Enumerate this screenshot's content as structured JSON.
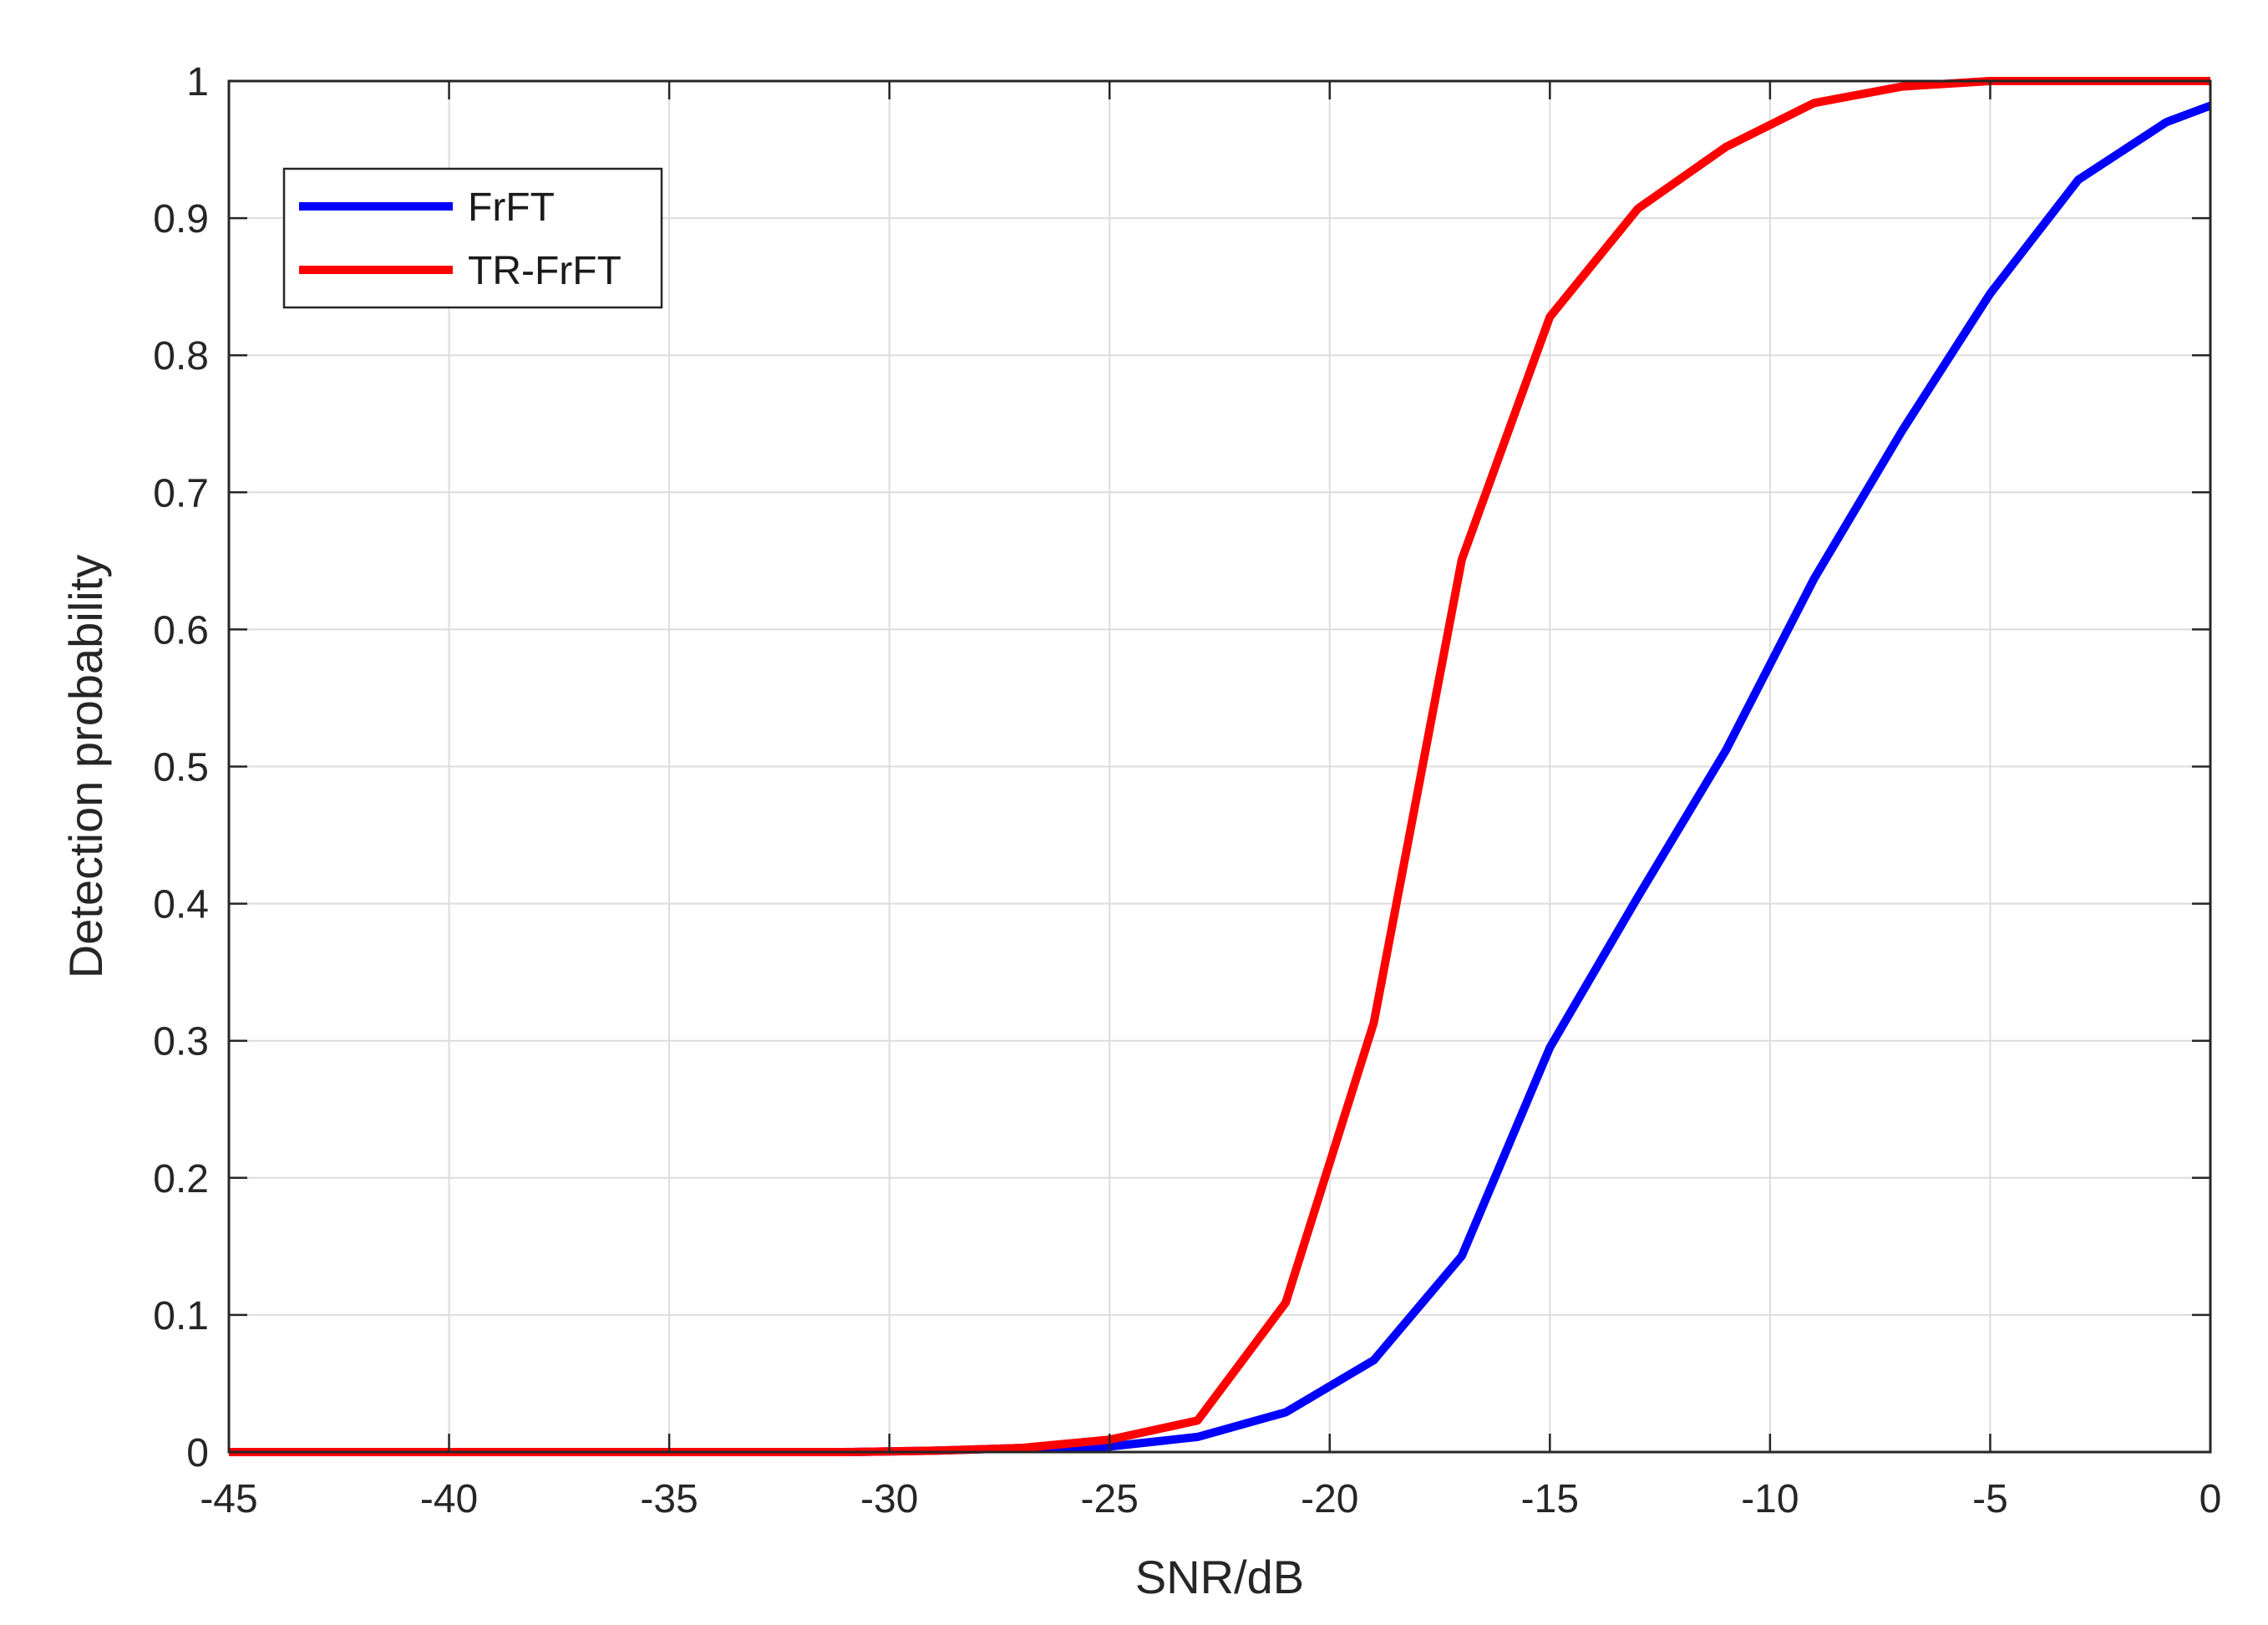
{
  "chart_data": {
    "type": "line",
    "title": "",
    "xlabel": "SNR/dB",
    "ylabel": "Detection probability",
    "xlim": [
      -45,
      0
    ],
    "ylim": [
      0,
      1
    ],
    "xticks": [
      "-45",
      "-40",
      "-35",
      "-30",
      "-25",
      "-20",
      "-15",
      "-10",
      "-5",
      "0"
    ],
    "yticks": [
      "0",
      "0.1",
      "0.2",
      "0.3",
      "0.4",
      "0.5",
      "0.6",
      "0.7",
      "0.8",
      "0.9",
      "1"
    ],
    "grid": true,
    "legend": "top-left",
    "x": [
      -45,
      -43,
      -41,
      -39,
      -37,
      -35,
      -33,
      -31,
      -29,
      -27,
      -25,
      -23,
      -21,
      -19,
      -17,
      -15,
      -13,
      -11,
      -9,
      -7,
      -5,
      -3,
      -1,
      0
    ],
    "series": [
      {
        "name": "FrFT",
        "color": "#0000ff",
        "values": [
          0,
          0,
          0,
          0,
          0,
          0,
          0,
          0,
          0.001,
          0.003,
          0.004,
          0.011,
          0.029,
          0.067,
          0.143,
          0.295,
          0.405,
          0.512,
          0.637,
          0.745,
          0.845,
          0.928,
          0.97,
          0.982
        ]
      },
      {
        "name": "TR-FrFT",
        "color": "#ff0000",
        "values": [
          0,
          0,
          0,
          0,
          0,
          0,
          0,
          0,
          0.001,
          0.003,
          0.009,
          0.023,
          0.109,
          0.313,
          0.651,
          0.828,
          0.907,
          0.952,
          0.984,
          0.996,
          1.0,
          1.0,
          1.0,
          1.0
        ]
      }
    ]
  }
}
